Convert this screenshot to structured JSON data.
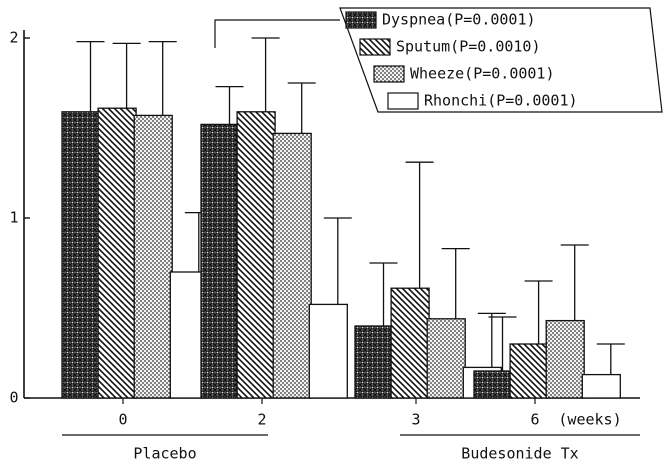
{
  "chart_data": {
    "type": "bar",
    "categories": [
      "0",
      "2",
      "3",
      "6"
    ],
    "x_unit": "(weeks)",
    "groups": [
      {
        "label": "Placebo"
      },
      {
        "label": "Budesonide Tx"
      }
    ],
    "series": [
      {
        "name": "Dyspnea(P=0.0001)",
        "pattern": "crosshatch",
        "color": "#222222",
        "values": [
          1.59,
          1.52,
          0.4,
          0.15
        ],
        "errors": [
          0.39,
          0.21,
          0.35,
          0.3
        ]
      },
      {
        "name": "Sputum(P=0.0010)",
        "pattern": "diagonal",
        "color": "#222222",
        "values": [
          1.61,
          1.59,
          0.61,
          0.3
        ],
        "errors": [
          0.36,
          0.41,
          0.7,
          0.35
        ]
      },
      {
        "name": "Wheeze(P=0.0001)",
        "pattern": "dots",
        "color": "#222222",
        "values": [
          1.57,
          1.47,
          0.44,
          0.43
        ],
        "errors": [
          0.41,
          0.28,
          0.39,
          0.42
        ]
      },
      {
        "name": "Rhonchi(P=0.0001)",
        "pattern": "none",
        "color": "#ffffff",
        "values": [
          0.7,
          0.52,
          0.17,
          0.13
        ],
        "errors": [
          0.33,
          0.48,
          0.3,
          0.17
        ]
      }
    ],
    "ylim": [
      0,
      2
    ],
    "yticks": [
      0,
      1,
      2
    ]
  }
}
